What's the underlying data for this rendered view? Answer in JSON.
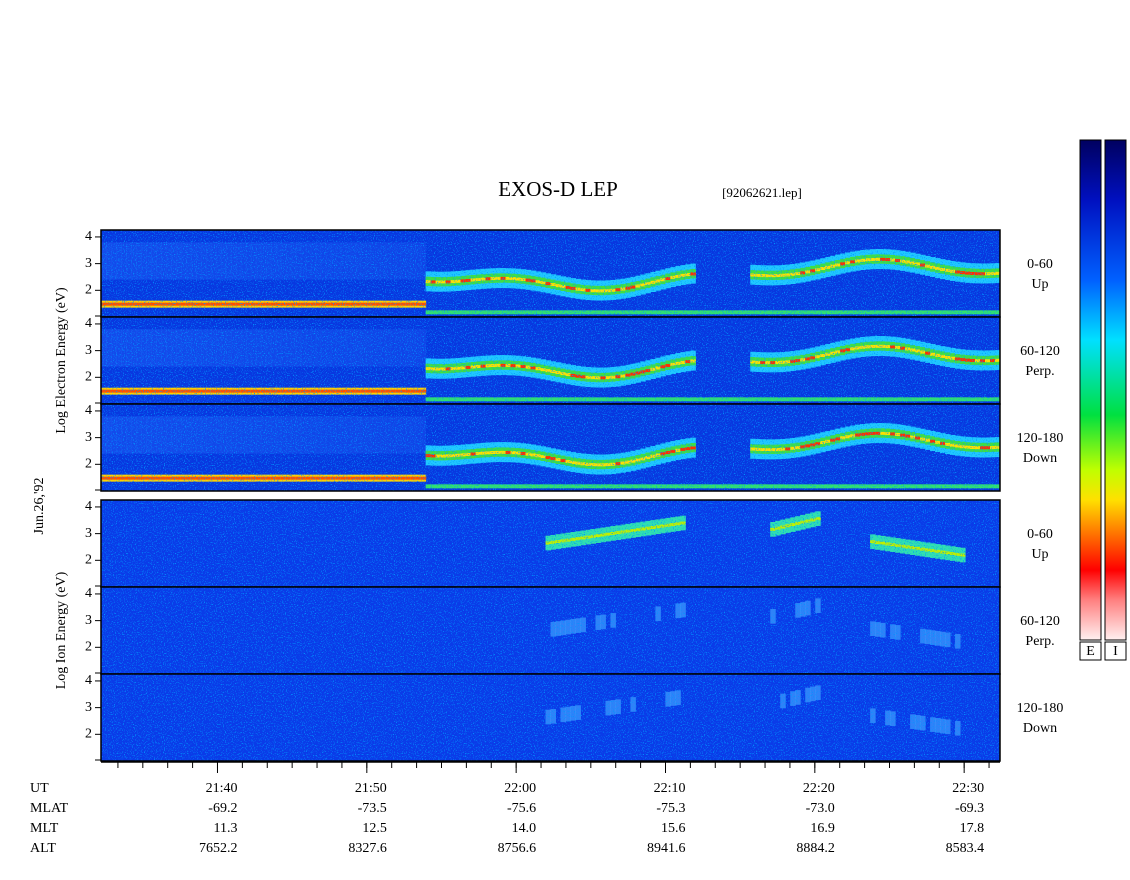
{
  "chart_data": {
    "type": "spectrogram",
    "title": "EXOS-D LEP",
    "file_label": "[92062621.lep]",
    "date_label": "Jun.26,'92",
    "groups": [
      {
        "label": "Log Electron Energy (eV)",
        "colorbar_label": "E",
        "panels": [
          {
            "range": "0-60",
            "direction": "Up"
          },
          {
            "range": "60-120",
            "direction": "Perp."
          },
          {
            "range": "120-180",
            "direction": "Down"
          }
        ]
      },
      {
        "label": "Log Ion Energy (eV)",
        "colorbar_label": "I",
        "panels": [
          {
            "range": "0-60",
            "direction": "Up"
          },
          {
            "range": "60-120",
            "direction": "Perp."
          },
          {
            "range": "120-180",
            "direction": "Down"
          }
        ]
      }
    ],
    "ylim": [
      1,
      4.26
    ],
    "yticks": [
      2,
      3,
      4
    ],
    "xlim": [
      1292.2,
      1352.4
    ],
    "xticks": [
      {
        "value": 1300,
        "label": "21:40"
      },
      {
        "value": 1310,
        "label": "21:50"
      },
      {
        "value": 1320,
        "label": "22:00"
      },
      {
        "value": 1330,
        "label": "22:10"
      },
      {
        "value": 1340,
        "label": "22:20"
      },
      {
        "value": 1350,
        "label": "22:30"
      }
    ],
    "x_label": "UT",
    "ephemeris": [
      {
        "name": "MLAT",
        "values": [
          "-69.2",
          "-73.5",
          "-75.6",
          "-75.3",
          "-73.0",
          "-69.3"
        ]
      },
      {
        "name": "MLT",
        "values": [
          "11.3",
          "12.5",
          "14.0",
          "15.6",
          "16.9",
          "17.8"
        ]
      },
      {
        "name": "ALT",
        "values": [
          "7652.2",
          "8327.6",
          "8756.6",
          "8941.6",
          "8884.2",
          "8583.4"
        ]
      }
    ]
  }
}
